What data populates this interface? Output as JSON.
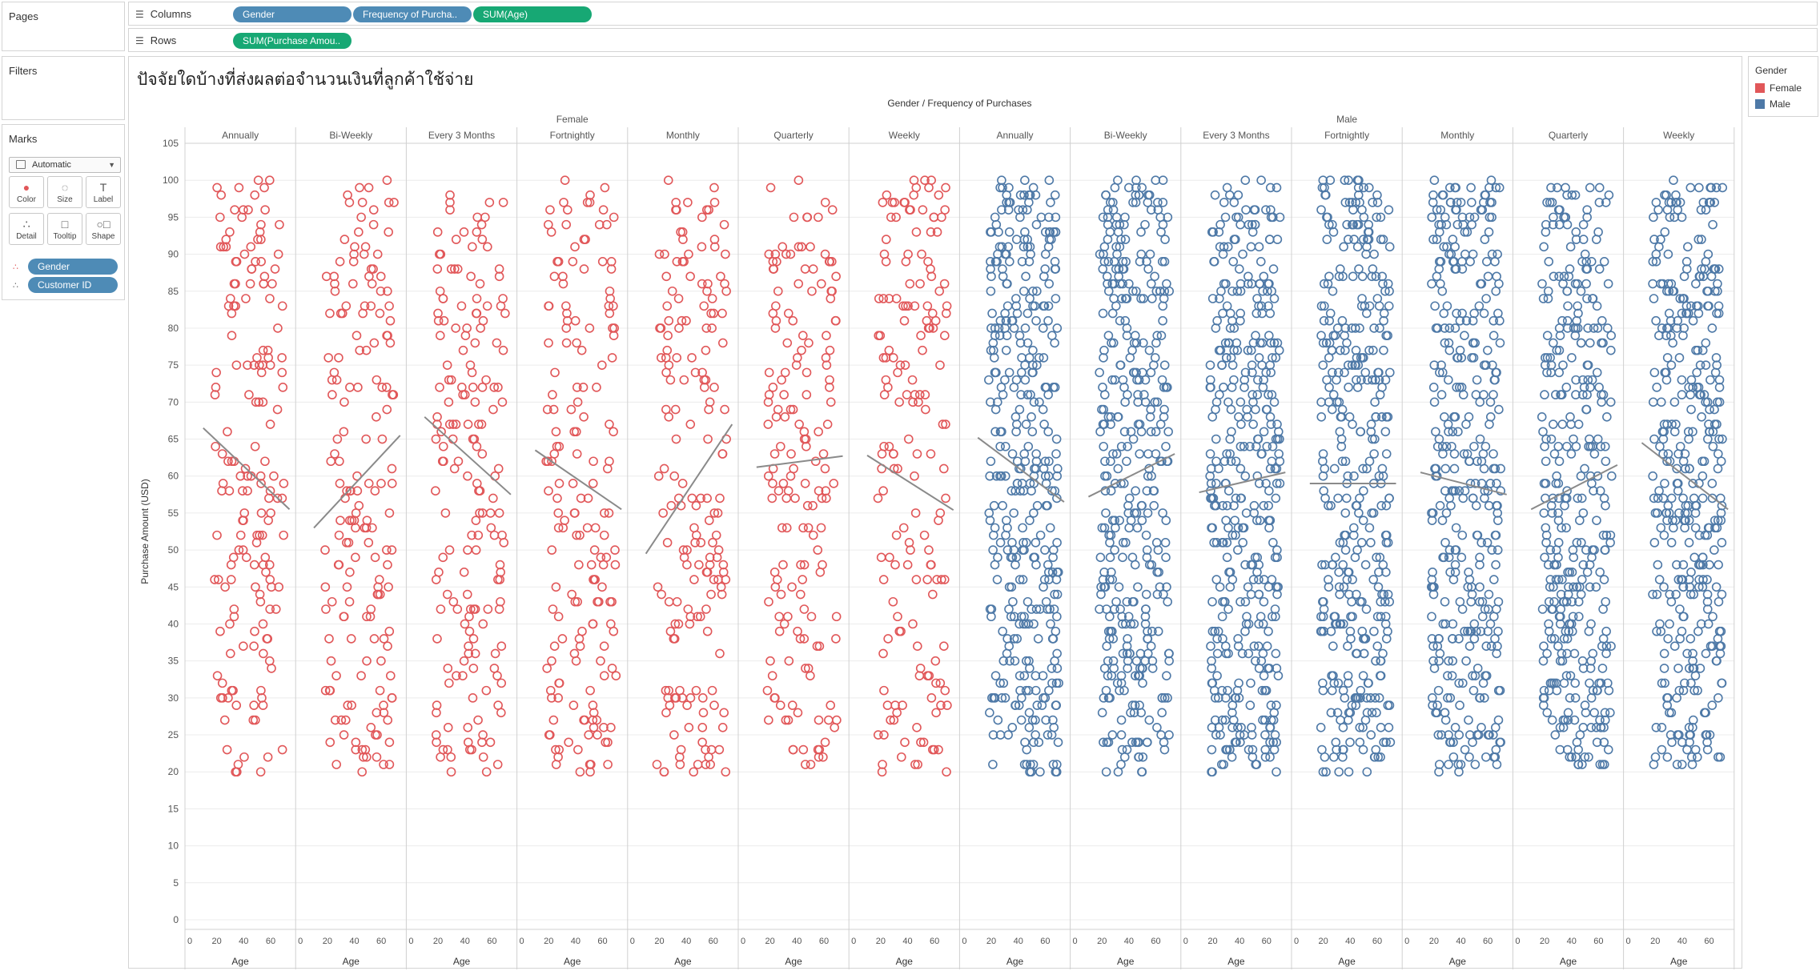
{
  "pages": {
    "label": "Pages"
  },
  "filters": {
    "label": "Filters"
  },
  "shelves": {
    "columns_label": "Columns",
    "rows_label": "Rows",
    "columns_pills": [
      "Gender",
      "Frequency of Purcha..",
      "SUM(Age)"
    ],
    "rows_pills": [
      "SUM(Purchase Amou.."
    ]
  },
  "marks": {
    "label": "Marks",
    "mark_type": "Automatic",
    "buttons": [
      "Color",
      "Size",
      "Label",
      "Detail",
      "Tooltip",
      "Shape"
    ],
    "pills": [
      "Gender",
      "Customer ID"
    ]
  },
  "legend": {
    "title": "Gender",
    "items": [
      {
        "label": "Female",
        "color": "#e15759"
      },
      {
        "label": "Male",
        "color": "#4e79a7"
      }
    ]
  },
  "chart_data": {
    "type": "scatter",
    "title": "ปัจจัยใดบ้างที่ส่งผลต่อจำนวนเงินที่ลูกค้าใช้จ่าย",
    "header_title": "Gender / Frequency of Purchases",
    "xlabel": "Age",
    "ylabel": "Purchase Amount (USD)",
    "ylim": [
      0,
      105
    ],
    "y_ticks": [
      0,
      5,
      10,
      15,
      20,
      25,
      30,
      35,
      40,
      45,
      50,
      55,
      60,
      65,
      70,
      75,
      80,
      85,
      90,
      95,
      100,
      105
    ],
    "xlim": [
      18,
      70
    ],
    "x_ticks": [
      0,
      20,
      40,
      60
    ],
    "grid": true,
    "marker": "open-circle",
    "legend_position": "top-right",
    "genders": [
      {
        "name": "Female",
        "color": "#e15759",
        "count": 7
      },
      {
        "name": "Male",
        "color": "#4e79a7",
        "count": 7
      }
    ],
    "panels": [
      {
        "gender": "Female",
        "frequency": "Annually",
        "trend": [
          66.5,
          55.5
        ],
        "n": 170
      },
      {
        "gender": "Female",
        "frequency": "Bi-Weekly",
        "trend": [
          53,
          65.5
        ],
        "n": 170
      },
      {
        "gender": "Female",
        "frequency": "Every 3 Months",
        "trend": [
          68,
          57.5
        ],
        "n": 175
      },
      {
        "gender": "Female",
        "frequency": "Fortnightly",
        "trend": [
          63.5,
          55.5
        ],
        "n": 170
      },
      {
        "gender": "Female",
        "frequency": "Monthly",
        "trend": [
          49.5,
          67
        ],
        "n": 175
      },
      {
        "gender": "Female",
        "frequency": "Quarterly",
        "trend": [
          61.2,
          62.7
        ],
        "n": 165
      },
      {
        "gender": "Female",
        "frequency": "Weekly",
        "trend": [
          62.8,
          55.4
        ],
        "n": 165
      },
      {
        "gender": "Male",
        "frequency": "Annually",
        "trend": [
          65.2,
          56.5
        ],
        "n": 380
      },
      {
        "gender": "Male",
        "frequency": "Bi-Weekly",
        "trend": [
          57.2,
          63
        ],
        "n": 380
      },
      {
        "gender": "Male",
        "frequency": "Every 3 Months",
        "trend": [
          57.8,
          60.5
        ],
        "n": 400
      },
      {
        "gender": "Male",
        "frequency": "Fortnightly",
        "trend": [
          59,
          59
        ],
        "n": 380
      },
      {
        "gender": "Male",
        "frequency": "Monthly",
        "trend": [
          60.5,
          57.5
        ],
        "n": 370
      },
      {
        "gender": "Male",
        "frequency": "Quarterly",
        "trend": [
          55.5,
          61.5
        ],
        "n": 360
      },
      {
        "gender": "Male",
        "frequency": "Weekly",
        "trend": [
          64.5,
          55.5
        ],
        "n": 380
      }
    ],
    "points_note_value": "sampled"
  }
}
